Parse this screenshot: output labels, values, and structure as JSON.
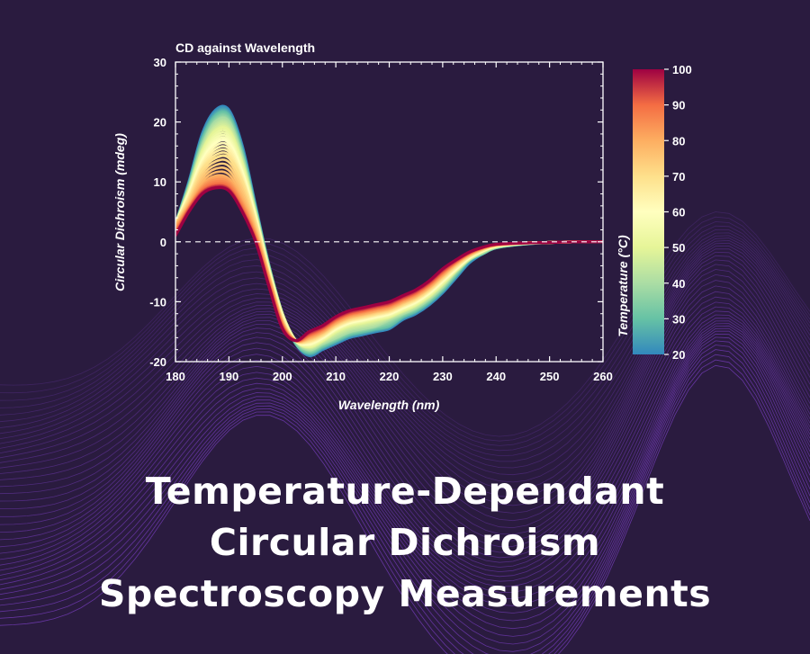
{
  "headline": {
    "line1": "Temperature-Dependant",
    "line2": "Circular Dichroism",
    "line3": "Spectroscopy Measurements"
  },
  "colors": {
    "background": "#2a1b3f",
    "decor_wave": "#7b3fc4",
    "zero_line": "#ffffff"
  },
  "chart_data": {
    "type": "line",
    "title": "CD against Wavelength",
    "xlabel": "Wavelength (nm)",
    "ylabel": "Circular Dichroism (mdeg)",
    "xlim": [
      180,
      260
    ],
    "ylim": [
      -20,
      30
    ],
    "xticks": [
      180,
      190,
      200,
      210,
      220,
      230,
      240,
      250,
      260
    ],
    "yticks": [
      -20,
      -10,
      0,
      10,
      20,
      30
    ],
    "zero_line": "dashed",
    "grid": false,
    "legend": "colorbar-right",
    "colormap": "Spectral",
    "colorbar": {
      "label": "Temperature (°C)",
      "range": [
        20,
        100
      ],
      "ticks": [
        20,
        30,
        40,
        50,
        60,
        70,
        80,
        90,
        100
      ]
    },
    "x": [
      180,
      182.5,
      185,
      187.5,
      190,
      192.5,
      195,
      197.5,
      200,
      202.5,
      205,
      207.5,
      210,
      212.5,
      215,
      217.5,
      220,
      222.5,
      225,
      227.5,
      230,
      232.5,
      235,
      237.5,
      240,
      245,
      250,
      255,
      260
    ],
    "series": [
      {
        "temperature": 20,
        "values": [
          3,
          10,
          18,
          22,
          22,
          16,
          6,
          -4,
          -12,
          -17,
          -19,
          -18,
          -17,
          -16,
          -15.5,
          -15,
          -14.5,
          -13,
          -12,
          -10.5,
          -8.5,
          -6,
          -3.5,
          -2,
          -1,
          -0.4,
          -0.1,
          0,
          0
        ]
      },
      {
        "temperature": 30,
        "values": [
          3,
          9.5,
          17,
          21,
          21,
          15,
          5.5,
          -4,
          -12,
          -17,
          -18.5,
          -17.5,
          -16.5,
          -15.5,
          -15,
          -14.5,
          -14,
          -12.5,
          -11.5,
          -10,
          -8,
          -5.5,
          -3,
          -2,
          -1,
          -0.4,
          -0.1,
          0,
          0
        ]
      },
      {
        "temperature": 40,
        "values": [
          3,
          9,
          16,
          20,
          20,
          14,
          5,
          -4.5,
          -12,
          -16.5,
          -18,
          -17,
          -16,
          -15,
          -14.5,
          -14,
          -13,
          -12,
          -11,
          -9.5,
          -7.5,
          -5,
          -3,
          -1.8,
          -0.9,
          -0.3,
          -0.1,
          0,
          0
        ]
      },
      {
        "temperature": 50,
        "values": [
          3,
          8.5,
          15,
          18.5,
          18.5,
          13,
          4.5,
          -4.5,
          -12,
          -16.5,
          -17.5,
          -16.5,
          -15,
          -14,
          -13.5,
          -13,
          -12.5,
          -11.5,
          -10.5,
          -9,
          -7,
          -4.8,
          -2.8,
          -1.6,
          -0.8,
          -0.3,
          -0.1,
          0,
          0
        ]
      },
      {
        "temperature": 60,
        "values": [
          3,
          8,
          13.5,
          16.5,
          16.5,
          11.5,
          4,
          -5,
          -12.5,
          -16.5,
          -17,
          -16,
          -14.5,
          -13.5,
          -13,
          -12.5,
          -12,
          -11,
          -10,
          -8.5,
          -6.5,
          -4.5,
          -2.6,
          -1.5,
          -0.7,
          -0.3,
          -0.1,
          0,
          0
        ]
      },
      {
        "temperature": 70,
        "values": [
          3,
          7,
          12,
          14,
          14,
          10,
          3,
          -5.5,
          -13,
          -16.5,
          -16.5,
          -15.5,
          -14,
          -13,
          -12.5,
          -12,
          -11.5,
          -10.5,
          -9.5,
          -8,
          -6,
          -4,
          -2.4,
          -1.3,
          -0.6,
          -0.2,
          -0.1,
          0,
          0
        ]
      },
      {
        "temperature": 80,
        "values": [
          2.5,
          6,
          9.5,
          11,
          10.5,
          7,
          1.5,
          -6,
          -13.5,
          -16.5,
          -16,
          -15,
          -13.5,
          -12.5,
          -12,
          -11.5,
          -11,
          -10,
          -9,
          -7.5,
          -5.5,
          -3.6,
          -2.1,
          -1.1,
          -0.5,
          -0.2,
          -0.1,
          0,
          0
        ]
      },
      {
        "temperature": 90,
        "values": [
          1.5,
          5.5,
          8.5,
          9.5,
          9,
          5.5,
          0.5,
          -7,
          -14,
          -16.5,
          -15.5,
          -14.5,
          -13,
          -12,
          -11.5,
          -11,
          -10.5,
          -9.5,
          -8.5,
          -7,
          -5,
          -3.3,
          -1.9,
          -1,
          -0.5,
          -0.2,
          -0.1,
          0,
          0
        ]
      },
      {
        "temperature": 100,
        "values": [
          1,
          5,
          8,
          9,
          8.5,
          5,
          0,
          -7.5,
          -14.5,
          -16.5,
          -15,
          -14,
          -12.5,
          -11.5,
          -11,
          -10.5,
          -10,
          -9,
          -8,
          -6.5,
          -4.5,
          -3,
          -1.7,
          -0.9,
          -0.4,
          -0.2,
          -0.1,
          0,
          0
        ]
      }
    ]
  }
}
